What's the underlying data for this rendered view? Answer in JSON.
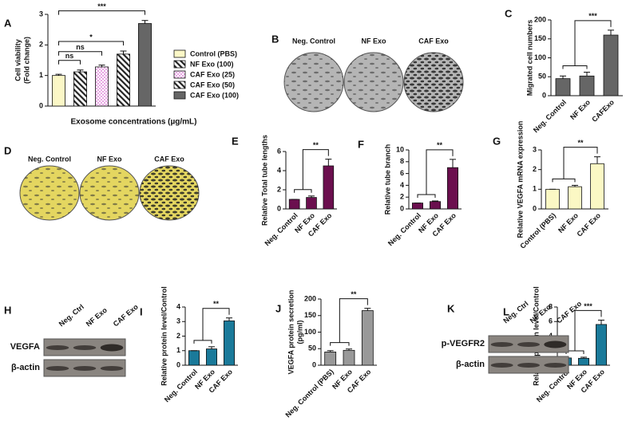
{
  "chart_data": [
    {
      "type": "bar",
      "panel": "A",
      "y_label": [
        "Cell viability",
        "(Fold change)"
      ],
      "x_label": "Exosome concentrations (µg/mL)",
      "categories": [
        "Control (PBS)",
        "NF Exo (100)",
        "CAF Exo (25)",
        "CAF Exo (50)",
        "CAF Exo (100)"
      ],
      "values": [
        1.0,
        1.12,
        1.28,
        1.7,
        2.7
      ],
      "errors": [
        0.04,
        0.06,
        0.06,
        0.1,
        0.1
      ],
      "colors": [
        "#fbf7c6",
        "#ffffff",
        "#e7a6e3",
        "#ffffff",
        "#666666"
      ],
      "patterns": [
        null,
        "hatch",
        "check",
        "hatch",
        null
      ],
      "legend": "right",
      "ylim": [
        0,
        3
      ],
      "yticks": [
        0,
        1,
        2,
        3
      ],
      "annotations": [
        {
          "text": "ns",
          "from": 0,
          "to": 1
        },
        {
          "text": "ns",
          "from": 0,
          "to": 2
        },
        {
          "text": "*",
          "from": 0,
          "to": 3
        },
        {
          "text": "***",
          "from": 0,
          "to": 4
        }
      ]
    },
    {
      "type": "bar",
      "panel": "C",
      "y_label": [
        "Migrated cell numbers"
      ],
      "categories": [
        "Neg. Control",
        "NF Exo",
        "CAFExo"
      ],
      "values": [
        45,
        52,
        160
      ],
      "errors": [
        7,
        10,
        13
      ],
      "color": "#666666",
      "ylim": [
        0,
        200
      ],
      "yticks": [
        0,
        50,
        100,
        150,
        200
      ],
      "annotations": [
        {
          "text": "***",
          "from": [
            0,
            1
          ],
          "to": 2
        }
      ]
    },
    {
      "type": "bar",
      "panel": "E",
      "y_label": [
        "Relative Total tube lengths"
      ],
      "categories": [
        "Neg. Control",
        "NF Exo",
        "CAF Exo"
      ],
      "values": [
        1.0,
        1.2,
        4.5
      ],
      "errors": [
        0,
        0.15,
        0.7
      ],
      "color": "#6b0f4e",
      "ylim": [
        0,
        6
      ],
      "yticks": [
        0,
        2,
        4,
        6
      ],
      "annotations": [
        {
          "text": "**",
          "from": [
            0,
            1
          ],
          "to": 2
        }
      ]
    },
    {
      "type": "bar",
      "panel": "F",
      "y_label": [
        "Relative tube branch"
      ],
      "categories": [
        "Neg. Control",
        "NF Exo",
        "CAF Exo"
      ],
      "values": [
        1.0,
        1.25,
        7.0
      ],
      "errors": [
        0,
        0.1,
        1.4
      ],
      "color": "#6b0f4e",
      "ylim": [
        0,
        10
      ],
      "yticks": [
        0,
        2,
        4,
        6,
        8,
        10
      ],
      "annotations": [
        {
          "text": "**",
          "from": [
            0,
            1
          ],
          "to": 2
        }
      ]
    },
    {
      "type": "bar",
      "panel": "G",
      "y_label": [
        "Relative VEGFA mRNA expression"
      ],
      "categories": [
        "Control (PBS)",
        "NF Exo",
        "CAF Exo"
      ],
      "values": [
        1.0,
        1.13,
        2.3
      ],
      "errors": [
        0,
        0.07,
        0.35
      ],
      "color": "#fbf8c4",
      "ylim": [
        0,
        3
      ],
      "yticks": [
        0,
        1,
        2,
        3
      ],
      "annotations": [
        {
          "text": "**",
          "from": [
            0,
            1
          ],
          "to": 2
        }
      ]
    },
    {
      "type": "bar",
      "panel": "I",
      "y_label": [
        "Relative protein level/Control"
      ],
      "categories": [
        "Neg. Control",
        "NF Exo",
        "CAF Exo"
      ],
      "values": [
        1.0,
        1.12,
        3.05
      ],
      "errors": [
        0,
        0.15,
        0.2
      ],
      "color": "#1a7a9a",
      "ylim": [
        0,
        4
      ],
      "yticks": [
        0,
        1,
        2,
        3,
        4
      ],
      "annotations": [
        {
          "text": "**",
          "from": [
            0,
            1
          ],
          "to": 2
        }
      ]
    },
    {
      "type": "bar",
      "panel": "J",
      "y_label": [
        "VEGFA protein secretion",
        "(pg/ml)"
      ],
      "categories": [
        "Neg. Control (PBS)",
        "NF Exo",
        "CAF Exo"
      ],
      "values": [
        40,
        45,
        165
      ],
      "errors": [
        4,
        4,
        7
      ],
      "color": "#999999",
      "ylim": [
        0,
        200
      ],
      "yticks": [
        0,
        50,
        100,
        150,
        200
      ],
      "annotations": [
        {
          "text": "**",
          "from": [
            0,
            1
          ],
          "to": 2
        }
      ]
    },
    {
      "type": "bar",
      "panel": "L",
      "y_label": [
        "Relative protein level/Control"
      ],
      "categories": [
        "Neg. Control",
        "NF Exo",
        "CAF Exo"
      ],
      "values": [
        1.0,
        0.95,
        5.6
      ],
      "errors": [
        0,
        0.15,
        0.6
      ],
      "color": "#1a7a9a",
      "ylim": [
        0,
        8
      ],
      "yticks": [
        0,
        2,
        4,
        6,
        8
      ],
      "annotations": [
        {
          "text": "***",
          "from": [
            0,
            1
          ],
          "to": 2
        }
      ]
    }
  ],
  "image_panels": [
    {
      "panel": "B",
      "kind": "wells",
      "color": "#b5b5b5",
      "labels": [
        "Neg. Control",
        "NF Exo",
        "CAF Exo"
      ]
    },
    {
      "panel": "D",
      "kind": "wells",
      "color": "#e4d660",
      "labels": [
        "Neg. Control",
        "NF Exo",
        "CAF Exo"
      ]
    },
    {
      "panel": "H",
      "kind": "blot",
      "lanes": [
        "Neg. Ctrl",
        "NF Exo",
        "CAF Exo"
      ],
      "rows": [
        "VEGFA",
        "β-actin"
      ]
    },
    {
      "panel": "K",
      "kind": "blot",
      "lanes": [
        "Neg. Ctrl",
        "NF Exo",
        "CAF Exo"
      ],
      "rows": [
        "p-VEGFR2",
        "β-actin"
      ]
    }
  ]
}
